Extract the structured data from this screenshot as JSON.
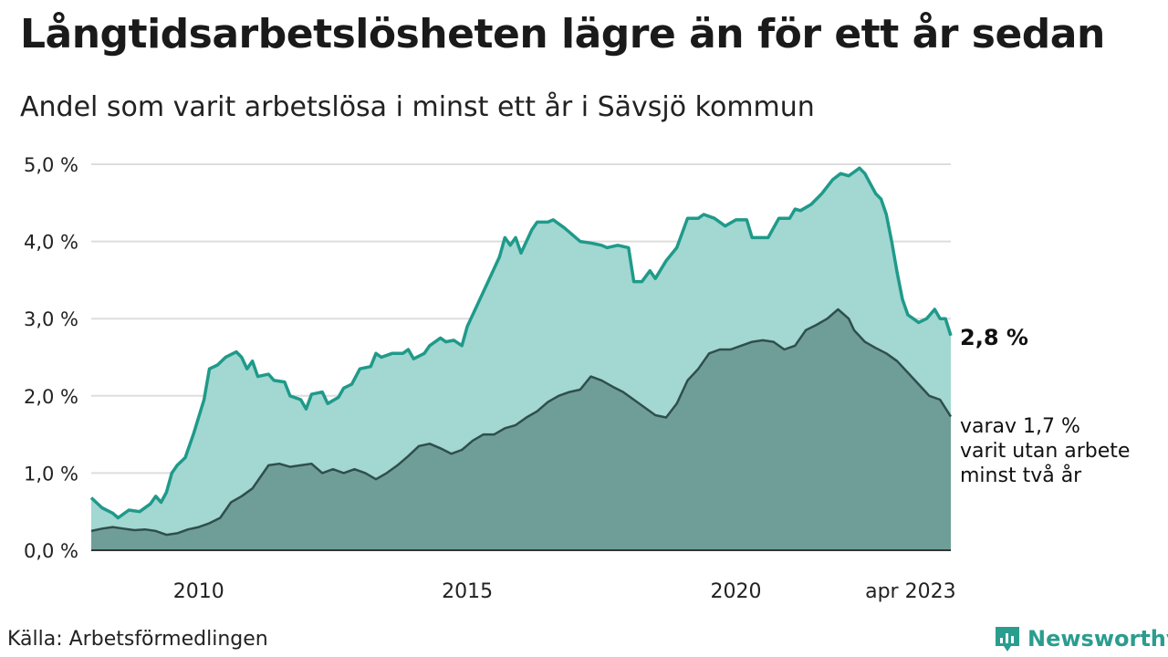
{
  "header": {
    "title": "Långtidsarbetslösheten lägre än för ett år sedan",
    "subtitle": "Andel som varit arbetslösa i minst ett år i Sävsjö kommun"
  },
  "footer": {
    "source": "Källa: Arbetsförmedlingen",
    "brand": "Newsworthy",
    "brand_icon": "bar-chart-logo-icon"
  },
  "colors": {
    "line1": "#1f9a8a",
    "area1": "#a3d7d1",
    "line2": "#2f4f4c",
    "area2": "#6f9e98",
    "grid": "#dddddd"
  },
  "chart_data": {
    "type": "area",
    "x_unit": "year (fractional)",
    "xlim": [
      2008.0,
      2023.25
    ],
    "ylim": [
      0,
      5
    ],
    "y_ticks": [
      0,
      1,
      2,
      3,
      4,
      5
    ],
    "y_tick_labels": [
      "0,0 %",
      "1,0 %",
      "2,0 %",
      "3,0 %",
      "4,0 %",
      "5,0 %"
    ],
    "x_ticks": [
      2010,
      2015,
      2020,
      2023.25
    ],
    "x_tick_labels": [
      "2010",
      "2015",
      "2020",
      "apr 2023"
    ],
    "grid": true,
    "series": [
      {
        "name": "",
        "end_label": "2,8 %",
        "points": [
          [
            2008.0,
            0.68
          ],
          [
            2008.2,
            0.55
          ],
          [
            2008.4,
            0.48
          ],
          [
            2008.5,
            0.42
          ],
          [
            2008.7,
            0.52
          ],
          [
            2008.9,
            0.5
          ],
          [
            2009.1,
            0.6
          ],
          [
            2009.2,
            0.7
          ],
          [
            2009.3,
            0.62
          ],
          [
            2009.4,
            0.75
          ],
          [
            2009.5,
            1.0
          ],
          [
            2009.6,
            1.1
          ],
          [
            2009.75,
            1.2
          ],
          [
            2009.9,
            1.5
          ],
          [
            2010.1,
            1.95
          ],
          [
            2010.2,
            2.35
          ],
          [
            2010.35,
            2.4
          ],
          [
            2010.5,
            2.5
          ],
          [
            2010.7,
            2.57
          ],
          [
            2010.8,
            2.5
          ],
          [
            2010.9,
            2.35
          ],
          [
            2011.0,
            2.45
          ],
          [
            2011.1,
            2.25
          ],
          [
            2011.3,
            2.28
          ],
          [
            2011.4,
            2.2
          ],
          [
            2011.6,
            2.18
          ],
          [
            2011.7,
            2.0
          ],
          [
            2011.9,
            1.95
          ],
          [
            2012.0,
            1.83
          ],
          [
            2012.1,
            2.02
          ],
          [
            2012.3,
            2.05
          ],
          [
            2012.4,
            1.9
          ],
          [
            2012.6,
            1.98
          ],
          [
            2012.7,
            2.1
          ],
          [
            2012.85,
            2.15
          ],
          [
            2013.0,
            2.35
          ],
          [
            2013.2,
            2.38
          ],
          [
            2013.3,
            2.55
          ],
          [
            2013.4,
            2.5
          ],
          [
            2013.6,
            2.55
          ],
          [
            2013.8,
            2.55
          ],
          [
            2013.9,
            2.6
          ],
          [
            2014.0,
            2.48
          ],
          [
            2014.2,
            2.55
          ],
          [
            2014.3,
            2.65
          ],
          [
            2014.5,
            2.75
          ],
          [
            2014.6,
            2.7
          ],
          [
            2014.75,
            2.72
          ],
          [
            2014.9,
            2.65
          ],
          [
            2015.0,
            2.9
          ],
          [
            2015.2,
            3.2
          ],
          [
            2015.4,
            3.5
          ],
          [
            2015.6,
            3.8
          ],
          [
            2015.7,
            4.05
          ],
          [
            2015.8,
            3.95
          ],
          [
            2015.9,
            4.05
          ],
          [
            2016.0,
            3.85
          ],
          [
            2016.2,
            4.15
          ],
          [
            2016.3,
            4.25
          ],
          [
            2016.5,
            4.25
          ],
          [
            2016.6,
            4.28
          ],
          [
            2016.8,
            4.18
          ],
          [
            2016.9,
            4.12
          ],
          [
            2017.1,
            4.0
          ],
          [
            2017.3,
            3.98
          ],
          [
            2017.5,
            3.95
          ],
          [
            2017.6,
            3.92
          ],
          [
            2017.8,
            3.95
          ],
          [
            2018.0,
            3.92
          ],
          [
            2018.1,
            3.48
          ],
          [
            2018.25,
            3.48
          ],
          [
            2018.4,
            3.62
          ],
          [
            2018.5,
            3.52
          ],
          [
            2018.7,
            3.75
          ],
          [
            2018.9,
            3.92
          ],
          [
            2019.1,
            4.3
          ],
          [
            2019.3,
            4.3
          ],
          [
            2019.4,
            4.35
          ],
          [
            2019.6,
            4.3
          ],
          [
            2019.8,
            4.2
          ],
          [
            2020.0,
            4.28
          ],
          [
            2020.2,
            4.28
          ],
          [
            2020.3,
            4.05
          ],
          [
            2020.5,
            4.05
          ],
          [
            2020.6,
            4.05
          ],
          [
            2020.8,
            4.3
          ],
          [
            2021.0,
            4.3
          ],
          [
            2021.1,
            4.42
          ],
          [
            2021.2,
            4.4
          ],
          [
            2021.4,
            4.48
          ],
          [
            2021.6,
            4.62
          ],
          [
            2021.8,
            4.8
          ],
          [
            2021.95,
            4.88
          ],
          [
            2022.1,
            4.85
          ],
          [
            2022.2,
            4.9
          ],
          [
            2022.3,
            4.95
          ],
          [
            2022.4,
            4.88
          ],
          [
            2022.5,
            4.75
          ],
          [
            2022.6,
            4.62
          ],
          [
            2022.7,
            4.55
          ],
          [
            2022.8,
            4.35
          ],
          [
            2022.9,
            4.0
          ],
          [
            2023.0,
            3.6
          ],
          [
            2023.1,
            3.25
          ],
          [
            2023.2,
            3.05
          ],
          [
            2023.3,
            3.0
          ],
          [
            2023.4,
            2.95
          ],
          [
            2023.55,
            3.0
          ],
          [
            2023.7,
            3.12
          ],
          [
            2023.8,
            3.0
          ],
          [
            2023.9,
            3.0
          ],
          [
            2024.0,
            2.78
          ]
        ]
      },
      {
        "name": "",
        "end_label": "varav 1,7 % varit utan arbete minst två år",
        "end_label_lines": [
          "varav 1,7 %",
          "varit utan arbete",
          "minst två år"
        ],
        "points": [
          [
            2008.0,
            0.25
          ],
          [
            2008.2,
            0.28
          ],
          [
            2008.4,
            0.3
          ],
          [
            2008.6,
            0.28
          ],
          [
            2008.8,
            0.26
          ],
          [
            2009.0,
            0.27
          ],
          [
            2009.2,
            0.25
          ],
          [
            2009.4,
            0.2
          ],
          [
            2009.6,
            0.22
          ],
          [
            2009.8,
            0.27
          ],
          [
            2010.0,
            0.3
          ],
          [
            2010.2,
            0.35
          ],
          [
            2010.4,
            0.42
          ],
          [
            2010.6,
            0.62
          ],
          [
            2010.8,
            0.7
          ],
          [
            2011.0,
            0.8
          ],
          [
            2011.1,
            0.9
          ],
          [
            2011.3,
            1.1
          ],
          [
            2011.5,
            1.12
          ],
          [
            2011.7,
            1.08
          ],
          [
            2011.9,
            1.1
          ],
          [
            2012.1,
            1.12
          ],
          [
            2012.3,
            1.0
          ],
          [
            2012.5,
            1.05
          ],
          [
            2012.7,
            1.0
          ],
          [
            2012.9,
            1.05
          ],
          [
            2013.1,
            1.0
          ],
          [
            2013.3,
            0.92
          ],
          [
            2013.5,
            1.0
          ],
          [
            2013.7,
            1.1
          ],
          [
            2013.9,
            1.22
          ],
          [
            2014.1,
            1.35
          ],
          [
            2014.3,
            1.38
          ],
          [
            2014.5,
            1.32
          ],
          [
            2014.7,
            1.25
          ],
          [
            2014.9,
            1.3
          ],
          [
            2015.1,
            1.42
          ],
          [
            2015.3,
            1.5
          ],
          [
            2015.5,
            1.5
          ],
          [
            2015.7,
            1.58
          ],
          [
            2015.9,
            1.62
          ],
          [
            2016.1,
            1.72
          ],
          [
            2016.3,
            1.8
          ],
          [
            2016.5,
            1.92
          ],
          [
            2016.7,
            2.0
          ],
          [
            2016.9,
            2.05
          ],
          [
            2017.1,
            2.08
          ],
          [
            2017.3,
            2.25
          ],
          [
            2017.5,
            2.2
          ],
          [
            2017.7,
            2.12
          ],
          [
            2017.9,
            2.05
          ],
          [
            2018.1,
            1.95
          ],
          [
            2018.3,
            1.85
          ],
          [
            2018.5,
            1.75
          ],
          [
            2018.7,
            1.72
          ],
          [
            2018.9,
            1.9
          ],
          [
            2019.1,
            2.2
          ],
          [
            2019.3,
            2.35
          ],
          [
            2019.5,
            2.55
          ],
          [
            2019.7,
            2.6
          ],
          [
            2019.9,
            2.6
          ],
          [
            2020.1,
            2.65
          ],
          [
            2020.3,
            2.7
          ],
          [
            2020.5,
            2.72
          ],
          [
            2020.7,
            2.7
          ],
          [
            2020.9,
            2.6
          ],
          [
            2021.1,
            2.65
          ],
          [
            2021.3,
            2.85
          ],
          [
            2021.5,
            2.92
          ],
          [
            2021.7,
            3.0
          ],
          [
            2021.9,
            3.12
          ],
          [
            2022.1,
            3.0
          ],
          [
            2022.2,
            2.85
          ],
          [
            2022.4,
            2.7
          ],
          [
            2022.6,
            2.62
          ],
          [
            2022.8,
            2.55
          ],
          [
            2023.0,
            2.45
          ],
          [
            2023.2,
            2.3
          ],
          [
            2023.4,
            2.15
          ],
          [
            2023.6,
            2.0
          ],
          [
            2023.8,
            1.95
          ],
          [
            2024.0,
            1.73
          ]
        ]
      }
    ]
  }
}
